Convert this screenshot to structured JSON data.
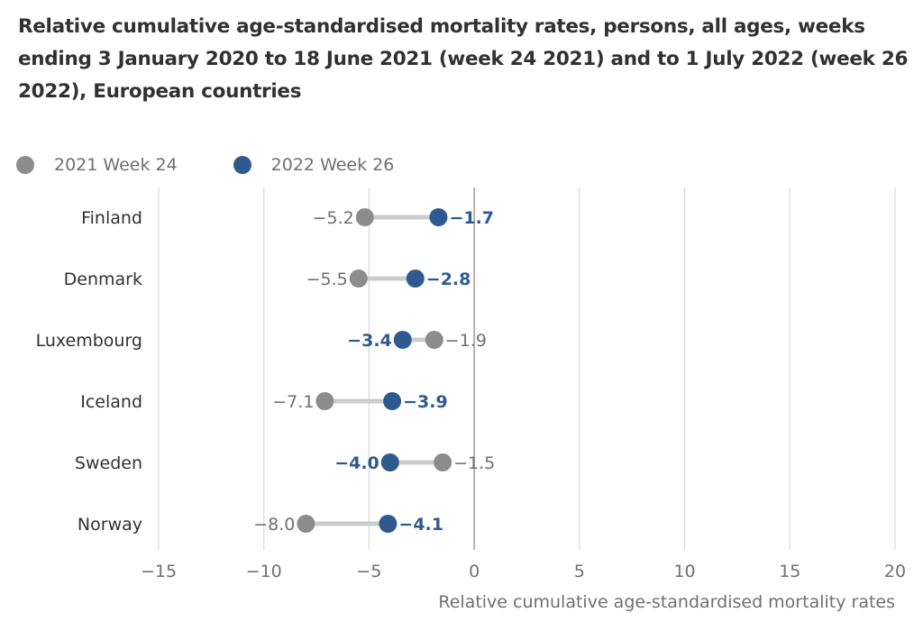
{
  "chart_data": {
    "type": "dumbbell",
    "title": "Relative cumulative age-standardised mortality rates, persons, all ages, weeks ending 3 January 2020 to 18 June 2021 (week 24 2021) and to 1 July 2022 (week 26 2022), European countries",
    "xlabel": "Relative cumulative age-standardised mortality rates",
    "ylabel": "",
    "xlim": [
      -15,
      20
    ],
    "xticks": [
      -15,
      -10,
      -5,
      0,
      5,
      10,
      15,
      20
    ],
    "xtick_labels": [
      "−15",
      "−10",
      "−5",
      "0",
      "5",
      "10",
      "15",
      "20"
    ],
    "grid": true,
    "legend_position": "top-left",
    "categories": [
      "Finland",
      "Denmark",
      "Luxembourg",
      "Iceland",
      "Sweden",
      "Norway"
    ],
    "series": [
      {
        "name": "2021 Week 24",
        "color": "#8c8c8c",
        "label_color": "#707071",
        "values": [
          -5.2,
          -5.5,
          -1.9,
          -7.1,
          -1.5,
          -8.0
        ],
        "labels": [
          "−5.2",
          "−5.5",
          "−1.9",
          "−7.1",
          "−1.5",
          "−8.0"
        ]
      },
      {
        "name": "2022 Week 26",
        "color": "#2e5b8f",
        "label_color": "#2e5b8f",
        "values": [
          -1.7,
          -2.8,
          -3.4,
          -3.9,
          -4.0,
          -4.1
        ],
        "labels": [
          "−1.7",
          "−2.8",
          "−3.4",
          "−3.9",
          "−4.0",
          "−4.1"
        ]
      }
    ],
    "connector_color": "#cccccc",
    "grid_color": "#d9d9d9",
    "zero_line_color": "#b3b3b3"
  }
}
